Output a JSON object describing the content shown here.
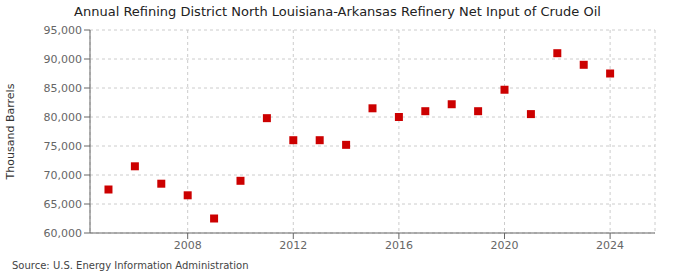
{
  "chart_data": {
    "type": "scatter",
    "title": "Annual Refining District North Louisiana-Arkansas Refinery Net Input of Crude Oil",
    "ylabel": "Thousand Barrels",
    "annotation": "Source: U.S. Energy Information Administration",
    "x": [
      2005,
      2006,
      2007,
      2008,
      2009,
      2010,
      2011,
      2012,
      2013,
      2014,
      2015,
      2016,
      2017,
      2018,
      2019,
      2020,
      2021,
      2022,
      2023,
      2024
    ],
    "values": [
      67500,
      71500,
      68500,
      66500,
      62500,
      69000,
      79800,
      76000,
      76000,
      75200,
      81500,
      80000,
      81000,
      82200,
      81000,
      84700,
      80500,
      91000,
      89000,
      87500
    ],
    "xlim": [
      2004.3,
      2025.7
    ],
    "xticks": [
      2008,
      2012,
      2016,
      2020,
      2024
    ],
    "ylim": [
      60000,
      95000
    ],
    "yticks": [
      {
        "value": 60000,
        "label": "60,000"
      },
      {
        "value": 65000,
        "label": "65,000"
      },
      {
        "value": 70000,
        "label": "70,000"
      },
      {
        "value": 75000,
        "label": "75,000"
      },
      {
        "value": 80000,
        "label": "80,000"
      },
      {
        "value": 85000,
        "label": "85,000"
      },
      {
        "value": 90000,
        "label": "90,000"
      },
      {
        "value": 95000,
        "label": "95,000"
      }
    ],
    "color": "#cc0000",
    "marker": "square",
    "grid": true
  }
}
